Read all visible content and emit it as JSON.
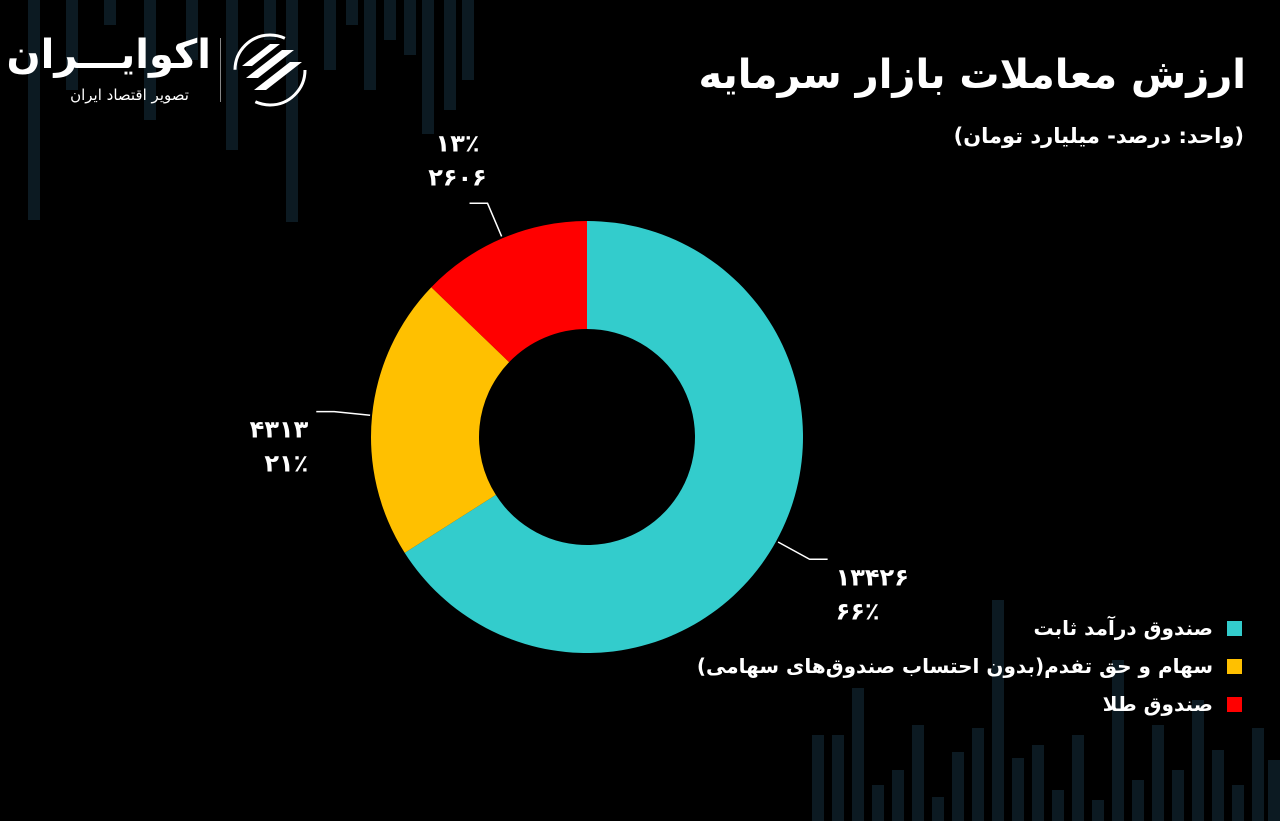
{
  "header": {
    "title": "ارزش معاملات بازار سرمایه",
    "subtitle": "(واحد: درصد- میلیارد تومان)"
  },
  "logo": {
    "name": "اکوایـــران",
    "tagline": "تصویر اقتصاد ایران"
  },
  "colors": {
    "background": "#000000",
    "fixed_income": "#33CCCC",
    "stocks": "#FFC000",
    "gold": "#FF0000"
  },
  "chart_data": {
    "type": "pie",
    "variant": "donut",
    "title": "ارزش معاملات بازار سرمایه",
    "subtitle": "(واحد: درصد- میلیارد تومان)",
    "legend_position": "bottom-right",
    "slices": [
      {
        "name": "صندوق درآمد ثابت",
        "value": 13426,
        "value_label": "۱۳۴۲۶",
        "percent": 66,
        "percent_label": "۶۶٪",
        "color": "#33CCCC"
      },
      {
        "name": "سهام و حق تفدم(بدون احتساب صندوق‌های سهامی)",
        "value": 4313,
        "value_label": "۴۳۱۳",
        "percent": 21,
        "percent_label": "۲۱٪",
        "color": "#FFC000"
      },
      {
        "name": "صندوق طلا",
        "value": 2606,
        "value_label": "۲۶۰۶",
        "percent": 13,
        "percent_label": "۱۳٪",
        "color": "#FF0000"
      }
    ]
  }
}
